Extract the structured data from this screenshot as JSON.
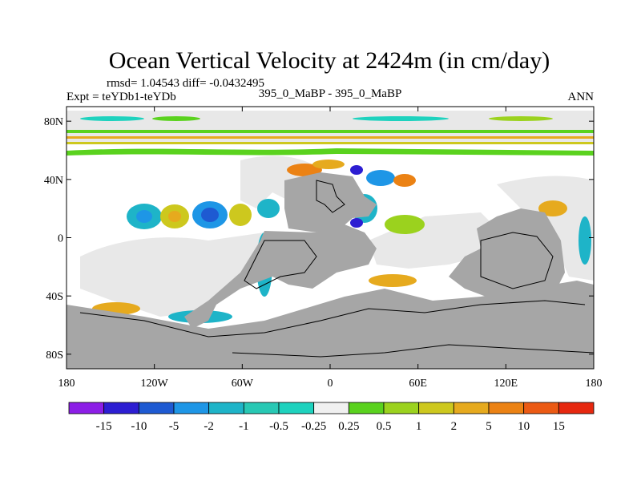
{
  "chart_data": {
    "type": "heatmap",
    "title": "Ocean Vertical Velocity at 2424m (in cm/day)",
    "stats": "rmsd= 1.04543 diff= -0.0432495",
    "left_label": "Expt = teYDb1-teYDb",
    "center_label": "395_0_MaBP - 395_0_MaBP",
    "right_label": "ANN",
    "x_ticks": [
      "180",
      "120W",
      "60W",
      "0",
      "60E",
      "120E",
      "180"
    ],
    "x_tick_values": [
      -180,
      -120,
      -60,
      0,
      60,
      120,
      180
    ],
    "y_ticks": [
      "80N",
      "40N",
      "0",
      "40S",
      "80S"
    ],
    "y_tick_values": [
      80,
      40,
      0,
      -40,
      -80
    ],
    "xlim": [
      -180,
      180
    ],
    "ylim": [
      -90,
      90
    ],
    "land_color": "#a6a6a6",
    "near_zero_color": "#e8e8e8",
    "colorbar": {
      "labels": [
        "-15",
        "-10",
        "-5",
        "-2",
        "-1",
        "-0.5",
        "-0.25",
        "0.25",
        "0.5",
        "1",
        "2",
        "5",
        "10",
        "15"
      ],
      "colors": [
        "#8c1ee6",
        "#2d1ed2",
        "#1e5ad2",
        "#1e96e6",
        "#1eb4c8",
        "#28c8b4",
        "#1ed2be",
        "#f0f0f0",
        "#5ad21e",
        "#9bd21e",
        "#cdc81e",
        "#e6aa1e",
        "#eb8214",
        "#eb5a14",
        "#e6280f"
      ]
    }
  }
}
